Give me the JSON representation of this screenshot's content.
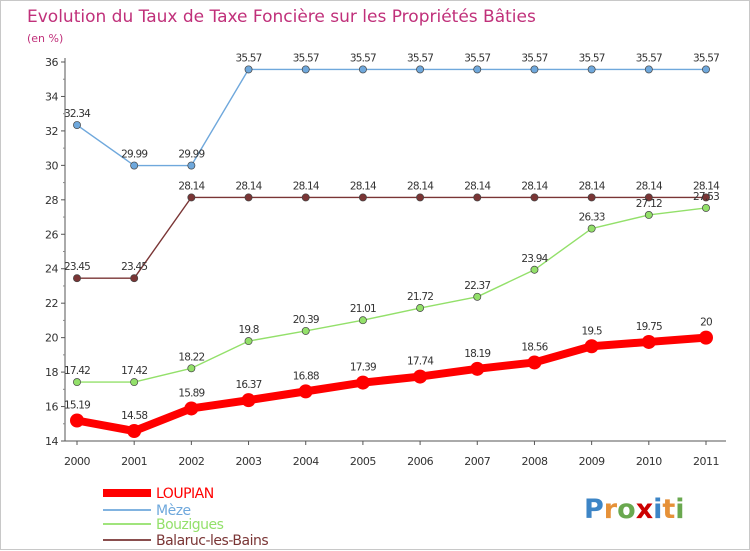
{
  "chart_data": {
    "type": "line",
    "title": "Evolution du Taux de Taxe Foncière sur les Propriétés Bâties",
    "subtitle": "(en %)",
    "xlabel": "",
    "ylabel": "(en %)",
    "x": [
      "2000",
      "2001",
      "2002",
      "2003",
      "2004",
      "2005",
      "2006",
      "2007",
      "2008",
      "2009",
      "2010",
      "2011"
    ],
    "ylim": [
      14,
      36
    ],
    "yticks": [
      14,
      16,
      18,
      20,
      22,
      24,
      26,
      28,
      30,
      32,
      34,
      36
    ],
    "grid": false,
    "legend_position": "bottom-left",
    "series": [
      {
        "name": "LOUPIAN",
        "color": "#ff0000",
        "values": [
          15.19,
          14.58,
          15.89,
          16.37,
          16.88,
          17.39,
          17.74,
          18.19,
          18.56,
          19.5,
          19.75,
          20
        ],
        "labels": [
          "15.19",
          "14.58",
          "15.89",
          "16.37",
          "16.88",
          "17.39",
          "17.74",
          "18.19",
          "18.56",
          "19.5",
          "19.75",
          "20"
        ]
      },
      {
        "name": "Mèze",
        "color": "#6fa8dc",
        "values": [
          32.34,
          29.99,
          29.99,
          35.57,
          35.57,
          35.57,
          35.57,
          35.57,
          35.57,
          35.57,
          35.57,
          35.57
        ],
        "labels": [
          "32.34",
          "29.99",
          "29.99",
          "35.57",
          "35.57",
          "35.57",
          "35.57",
          "35.57",
          "35.57",
          "35.57",
          "35.57",
          "35.57"
        ]
      },
      {
        "name": "Bouzigues",
        "color": "#93e06a",
        "values": [
          17.42,
          17.42,
          18.22,
          19.8,
          20.39,
          21.01,
          21.72,
          22.37,
          23.94,
          26.33,
          27.12,
          27.53
        ],
        "labels": [
          "17.42",
          "17.42",
          "18.22",
          "19.8",
          "20.39",
          "21.01",
          "21.72",
          "22.37",
          "23.94",
          "26.33",
          "27.12",
          "27.53"
        ]
      },
      {
        "name": "Balaruc-les-Bains",
        "color": "#7a3535",
        "values": [
          23.45,
          23.45,
          28.14,
          28.14,
          28.14,
          28.14,
          28.14,
          28.14,
          28.14,
          28.14,
          28.14,
          28.14
        ],
        "labels": [
          "23.45",
          "23.45",
          "28.14",
          "28.14",
          "28.14",
          "28.14",
          "28.14",
          "28.14",
          "28.14",
          "28.14",
          "28.14",
          "28.14"
        ]
      }
    ]
  },
  "logo": {
    "text": "Proxiti",
    "letters": [
      "P",
      "r",
      "o",
      "x",
      "i",
      "t",
      "i"
    ],
    "colors": [
      "#3d85c6",
      "#e69138",
      "#6aa84f",
      "#cc0000",
      "#3d85c6",
      "#e69138",
      "#6aa84f"
    ]
  }
}
